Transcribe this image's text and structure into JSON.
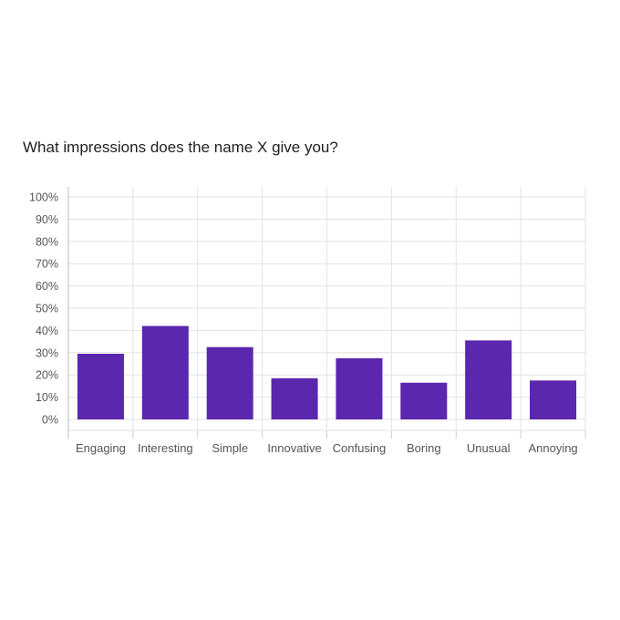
{
  "chart_data": {
    "type": "bar",
    "title": "What impressions does the name X give you?",
    "xlabel": "",
    "ylabel": "",
    "categories": [
      "Engaging",
      "Interesting",
      "Simple",
      "Innovative",
      "Confusing",
      "Boring",
      "Unusual",
      "Annoying"
    ],
    "values": [
      29.5,
      42,
      32.5,
      18.5,
      27.5,
      16.5,
      35.5,
      17.5
    ],
    "ylim": [
      0,
      100
    ],
    "yticks": [
      "0%",
      "10%",
      "20%",
      "30%",
      "40%",
      "50%",
      "60%",
      "70%",
      "80%",
      "90%",
      "100%"
    ],
    "grid": true,
    "legend": "none",
    "bar_color": "#5b27ae"
  }
}
